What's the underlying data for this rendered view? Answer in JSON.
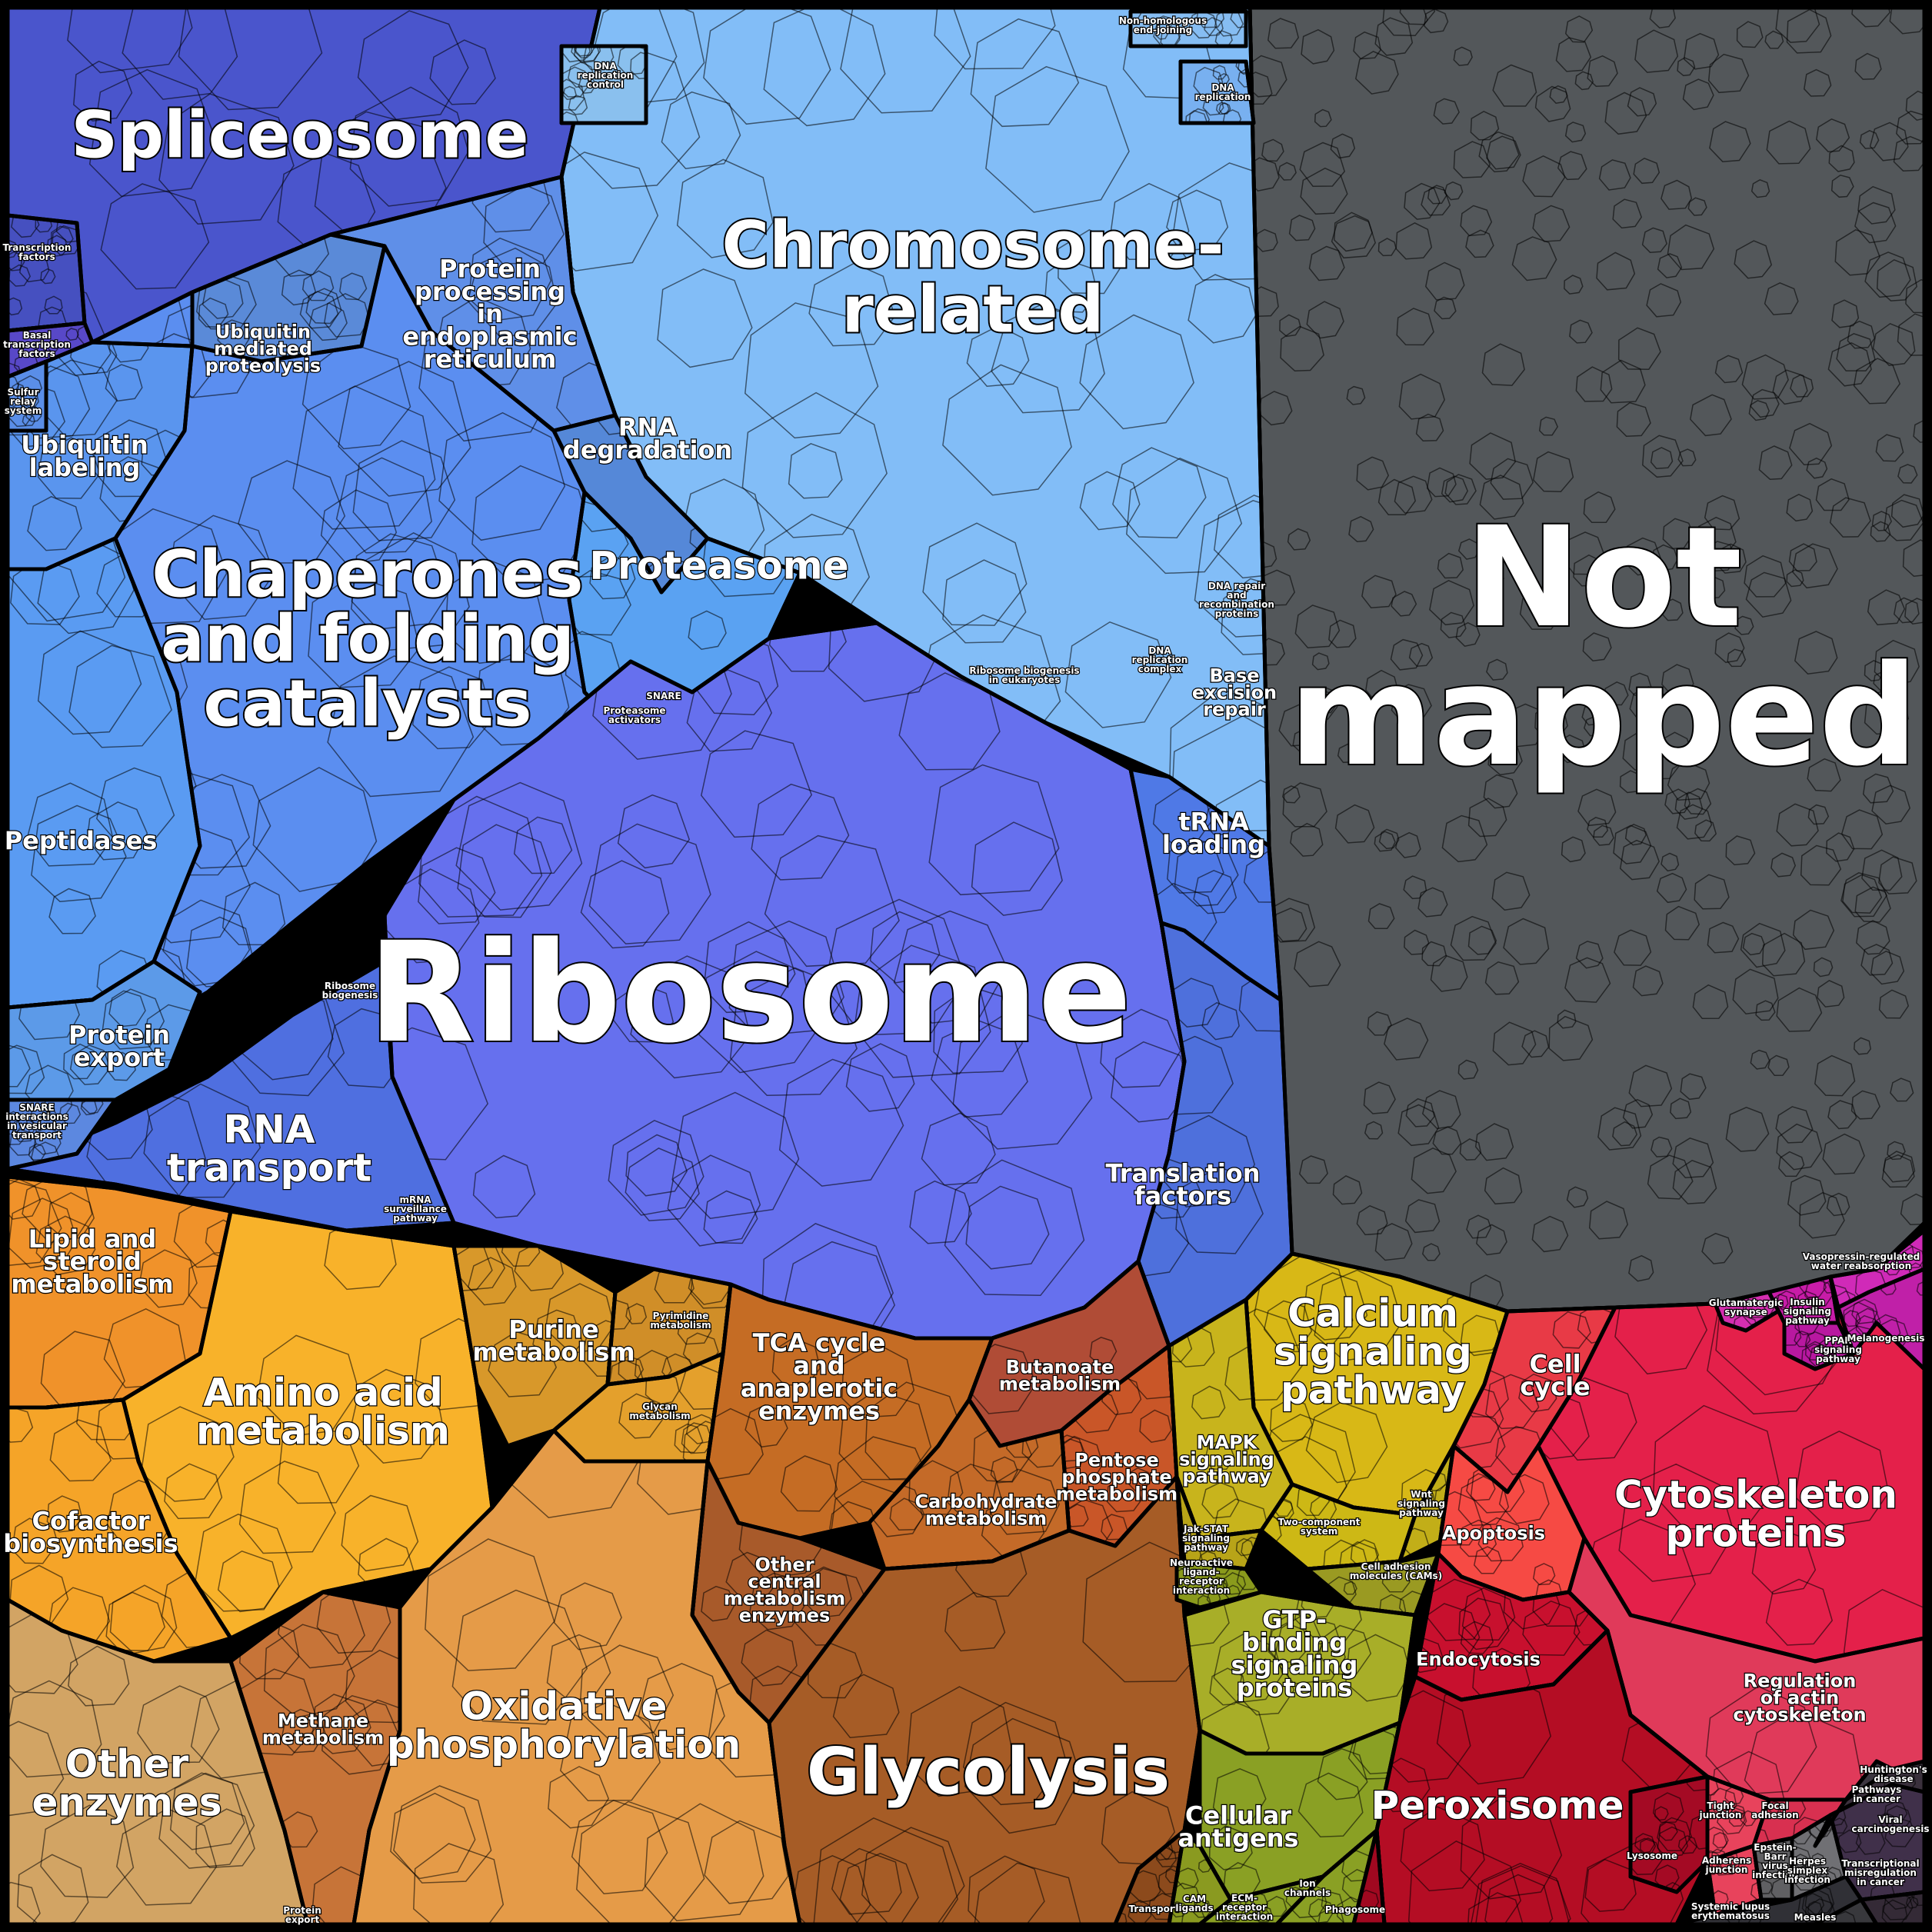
{
  "diagram": {
    "regions": [
      {
        "key": "spliceosome",
        "lines": [
          "Spliceosome"
        ],
        "color": "#4a55cc",
        "tier": "xl"
      },
      {
        "key": "chromosome",
        "lines": [
          "Chromosome-",
          "related"
        ],
        "color": "#82bdf7",
        "tier": "xl"
      },
      {
        "key": "not_mapped",
        "lines": [
          "Not",
          "mapped"
        ],
        "color": "#53575a",
        "tier": "xxl"
      },
      {
        "key": "chaperones",
        "lines": [
          "Chaperones",
          "and folding",
          "catalysts"
        ],
        "color": "#5b8ef0",
        "tier": "xl"
      },
      {
        "key": "ribosome",
        "lines": [
          "Ribosome"
        ],
        "color": "#6670ee",
        "tier": "xxl"
      },
      {
        "key": "protein_processing",
        "lines": [
          "Protein",
          "processing",
          "in",
          "endoplasmic",
          "reticulum"
        ],
        "color": "#5f8fe8",
        "tier": "m"
      },
      {
        "key": "ubiquitin_proteolysis",
        "lines": [
          "Ubiquitin",
          "mediated",
          "proteolysis"
        ],
        "color": "#5a8ad8",
        "tier": "s"
      },
      {
        "key": "ubiquitin_labeling",
        "lines": [
          "Ubiquitin",
          "labeling"
        ],
        "color": "#5a95ee",
        "tier": "m"
      },
      {
        "key": "rna_degradation",
        "lines": [
          "RNA",
          "degradation"
        ],
        "color": "#5588d8",
        "tier": "m"
      },
      {
        "key": "proteasome",
        "lines": [
          "Proteasome"
        ],
        "color": "#5aa2f2",
        "tier": "l"
      },
      {
        "key": "peptidases",
        "lines": [
          "Peptidases"
        ],
        "color": "#5a9bf2",
        "tier": "m"
      },
      {
        "key": "protein_export",
        "lines": [
          "Protein",
          "export"
        ],
        "color": "#5c9ae8",
        "tier": "m"
      },
      {
        "key": "rna_transport",
        "lines": [
          "RNA",
          "transport"
        ],
        "color": "#4f6fe0",
        "tier": "l"
      },
      {
        "key": "trna_loading",
        "lines": [
          "tRNA",
          "loading"
        ],
        "color": "#4f79e6",
        "tier": "m"
      },
      {
        "key": "translation_factors",
        "lines": [
          "Translation",
          "factors"
        ],
        "color": "#4e70dc",
        "tier": "m"
      },
      {
        "key": "ribosome_biogenesis",
        "lines": [
          "Ribosome",
          "biogenesis"
        ],
        "color": "#4d70d8",
        "tier": "xs"
      },
      {
        "key": "mrna_surveillance",
        "lines": [
          "mRNA",
          "surveillance",
          "pathway"
        ],
        "color": "#3f5fcc",
        "tier": "xs"
      },
      {
        "key": "snare",
        "lines": [
          "SNARE",
          "interactions",
          "in vesicular",
          "transport"
        ],
        "color": "#5c88e0",
        "tier": "xs"
      },
      {
        "key": "transcription_factors",
        "lines": [
          "Transcription",
          "factors"
        ],
        "color": "#4650c0",
        "tier": "xs"
      },
      {
        "key": "basal_tf",
        "lines": [
          "Basal",
          "transcription",
          "factors"
        ],
        "color": "#5848c8",
        "tier": "xs"
      },
      {
        "key": "sulfur_relay",
        "lines": [
          "Sulfur",
          "relay",
          "system"
        ],
        "color": "#5a8ee8",
        "tier": "xs"
      },
      {
        "key": "nhej",
        "lines": [
          "Non-homologous",
          "end-joining"
        ],
        "color": "#86bdf2",
        "tier": "xs"
      },
      {
        "key": "dna_replication",
        "lines": [
          "DNA",
          "replication"
        ],
        "color": "#78b0f0",
        "tier": "xs"
      },
      {
        "key": "dna_replication_control",
        "lines": [
          "DNA",
          "replication",
          "control"
        ],
        "color": "#8ac0ee",
        "tier": "xs"
      },
      {
        "key": "dna_repair",
        "lines": [
          "DNA repair",
          "and",
          "recombination",
          "proteins"
        ],
        "color": "#86bdf4",
        "tier": "xs"
      },
      {
        "key": "dna_replication_complex",
        "lines": [
          "DNA",
          "replication",
          "complex"
        ],
        "color": "#86bdf4",
        "tier": "xs"
      },
      {
        "key": "base_excision",
        "lines": [
          "Base",
          "excision",
          "repair"
        ],
        "color": "#8ab8e6",
        "tier": "s"
      },
      {
        "key": "ribosome_biogenesis_euk",
        "lines": [
          "Ribosome biogenesis",
          "in eukaryotes"
        ],
        "color": "#4c6ee0",
        "tier": "xs"
      },
      {
        "key": "proteasome_small",
        "lines": [
          "Proteasome",
          "activators"
        ],
        "color": "#5aa0ee",
        "tier": "xs"
      },
      {
        "key": "snare_small",
        "lines": [
          "SNARE"
        ],
        "color": "#5aa0ee",
        "tier": "xs"
      },
      {
        "key": "lipid",
        "lines": [
          "Lipid and",
          "steroid",
          "metabolism"
        ],
        "color": "#f0922a",
        "tier": "m"
      },
      {
        "key": "amino_acid",
        "lines": [
          "Amino acid",
          "metabolism"
        ],
        "color": "#f8b22a",
        "tier": "l"
      },
      {
        "key": "cofactor",
        "lines": [
          "Cofactor",
          "biosynthesis"
        ],
        "color": "#f5a428",
        "tier": "m"
      },
      {
        "key": "other_enzymes",
        "lines": [
          "Other",
          "enzymes"
        ],
        "color": "#d2a464",
        "tier": "l"
      },
      {
        "key": "purine",
        "lines": [
          "Purine",
          "metabolism"
        ],
        "color": "#d8982a",
        "tier": "m"
      },
      {
        "key": "pyrimidine",
        "lines": [
          "Pyrimidine",
          "metabolism"
        ],
        "color": "#d08e28",
        "tier": "xs"
      },
      {
        "key": "glycan",
        "lines": [
          "Glycan",
          "metabolism"
        ],
        "color": "#e4a02c",
        "tier": "xs"
      },
      {
        "key": "tca",
        "lines": [
          "TCA cycle",
          "and",
          "anaplerotic",
          "enzymes"
        ],
        "color": "#c56c24",
        "tier": "m"
      },
      {
        "key": "butanoate",
        "lines": [
          "Butanoate",
          "metabolism"
        ],
        "color": "#b04c36",
        "tier": "s"
      },
      {
        "key": "pentose",
        "lines": [
          "Pentose",
          "phosphate",
          "metabolism"
        ],
        "color": "#c95628",
        "tier": "s"
      },
      {
        "key": "carbohydrate",
        "lines": [
          "Carbohydrate",
          "metabolism"
        ],
        "color": "#c46a28",
        "tier": "s"
      },
      {
        "key": "other_central",
        "lines": [
          "Other",
          "central",
          "metabolism",
          "enzymes"
        ],
        "color": "#a85a2a",
        "tier": "s"
      },
      {
        "key": "methane",
        "lines": [
          "Methane",
          "metabolism"
        ],
        "color": "#c77438",
        "tier": "s"
      },
      {
        "key": "oxphos",
        "lines": [
          "Oxidative",
          "phosphorylation"
        ],
        "color": "#e59b48",
        "tier": "l"
      },
      {
        "key": "glycolysis",
        "lines": [
          "Glycolysis"
        ],
        "color": "#a65c26",
        "tier": "xl"
      },
      {
        "key": "transport",
        "lines": [
          "Transport"
        ],
        "color": "#8c4a1c",
        "tier": "xs"
      },
      {
        "key": "protein_export_small",
        "lines": [
          "Protein",
          "export"
        ],
        "color": "#c89458",
        "tier": "xs"
      },
      {
        "key": "calcium",
        "lines": [
          "Calcium",
          "signaling",
          "pathway"
        ],
        "color": "#d8b816",
        "tier": "l"
      },
      {
        "key": "mapk",
        "lines": [
          "MAPK",
          "signaling",
          "pathway"
        ],
        "color": "#c8b41c",
        "tier": "s"
      },
      {
        "key": "two_component",
        "lines": [
          "Two-component",
          "system"
        ],
        "color": "#cdb815",
        "tier": "xs"
      },
      {
        "key": "wnt",
        "lines": [
          "Wnt",
          "signaling",
          "pathway"
        ],
        "color": "#c2ae18",
        "tier": "xs"
      },
      {
        "key": "jak",
        "lines": [
          "Jak-STAT",
          "signaling",
          "pathway"
        ],
        "color": "#b8a418",
        "tier": "xs"
      },
      {
        "key": "neuroactive",
        "lines": [
          "Neuroactive",
          "ligand-",
          "receptor",
          "interaction"
        ],
        "color": "#8a9a1c",
        "tier": "xs"
      },
      {
        "key": "cam",
        "lines": [
          "Cell adhesion",
          "molecules (CAMs)"
        ],
        "color": "#9a9a22",
        "tier": "xs"
      },
      {
        "key": "gtp",
        "lines": [
          "GTP-",
          "binding",
          "signaling",
          "proteins"
        ],
        "color": "#a8ae28",
        "tier": "m"
      },
      {
        "key": "cellular_antigens",
        "lines": [
          "Cellular",
          "antigens"
        ],
        "color": "#8aa024",
        "tier": "m"
      },
      {
        "key": "cam_ligands",
        "lines": [
          "CAM",
          "ligands"
        ],
        "color": "#8a9a20",
        "tier": "xs"
      },
      {
        "key": "ecm",
        "lines": [
          "ECM-",
          "receptor",
          "interaction"
        ],
        "color": "#8aa024",
        "tier": "xs"
      },
      {
        "key": "ion_channels",
        "lines": [
          "Ion",
          "channels"
        ],
        "color": "#8aa024",
        "tier": "xs"
      },
      {
        "key": "cell_cycle",
        "lines": [
          "Cell",
          "cycle"
        ],
        "color": "#e83a46",
        "tier": "m"
      },
      {
        "key": "apoptosis",
        "lines": [
          "Apoptosis"
        ],
        "color": "#f64a44",
        "tier": "s"
      },
      {
        "key": "cytoskeleton",
        "lines": [
          "Cytoskeleton",
          "proteins"
        ],
        "color": "#e4204a",
        "tier": "l"
      },
      {
        "key": "endocytosis",
        "lines": [
          "Endocytosis"
        ],
        "color": "#c8102e",
        "tier": "s"
      },
      {
        "key": "regulation_actin",
        "lines": [
          "Regulation",
          "of actin",
          "cytoskeleton"
        ],
        "color": "#e03a5a",
        "tier": "s"
      },
      {
        "key": "peroxisome",
        "lines": [
          "Peroxisome"
        ],
        "color": "#b40d24",
        "tier": "l"
      },
      {
        "key": "lysosome",
        "lines": [
          "Lysosome"
        ],
        "color": "#a40a24",
        "tier": "xs"
      },
      {
        "key": "phagosome",
        "lines": [
          "Phagosome"
        ],
        "color": "#a00820",
        "tier": "xs"
      },
      {
        "key": "tight_junction",
        "lines": [
          "Tight",
          "junction"
        ],
        "color": "#e8435c",
        "tier": "xs"
      },
      {
        "key": "focal_adhesion",
        "lines": [
          "Focal",
          "adhesion"
        ],
        "color": "#d83050",
        "tier": "xs"
      },
      {
        "key": "adherens_junction",
        "lines": [
          "Adherens",
          "junction"
        ],
        "color": "#e8435c",
        "tier": "xs"
      },
      {
        "key": "epstein",
        "lines": [
          "Epstein-",
          "Barr",
          "virus",
          "infection"
        ],
        "color": "#606063",
        "tier": "xs"
      },
      {
        "key": "herpes",
        "lines": [
          "Herpes",
          "simplex",
          "infection"
        ],
        "color": "#707074",
        "tier": "xs"
      },
      {
        "key": "transcriptional_mis",
        "lines": [
          "Transcriptional",
          "misregulation",
          "in cancer"
        ],
        "color": "#40304a",
        "tier": "xs"
      },
      {
        "key": "sle",
        "lines": [
          "Systemic lupus",
          "erythematosus"
        ],
        "color": "#303036",
        "tier": "xs"
      },
      {
        "key": "measles",
        "lines": [
          "Measles"
        ],
        "color": "#38383c",
        "tier": "xs"
      },
      {
        "key": "pathways_cancer",
        "lines": [
          "Pathways",
          "in cancer"
        ],
        "color": "#3a303c",
        "tier": "xs"
      },
      {
        "key": "viral_carcinogenesis",
        "lines": [
          "Viral",
          "carcinogenesis"
        ],
        "color": "#342a36",
        "tier": "xs"
      },
      {
        "key": "huntington",
        "lines": [
          "Huntington's",
          "disease"
        ],
        "color": "#3c3640",
        "tier": "xs"
      },
      {
        "key": "glutamatergic",
        "lines": [
          "Glutamatergic",
          "synapse"
        ],
        "color": "#d42eb0",
        "tier": "xs"
      },
      {
        "key": "insulin",
        "lines": [
          "Insulin",
          "signaling",
          "pathway"
        ],
        "color": "#c81ca8",
        "tier": "xs"
      },
      {
        "key": "ppar",
        "lines": [
          "PPAR",
          "signaling",
          "pathway"
        ],
        "color": "#b818a0",
        "tier": "xs"
      },
      {
        "key": "vasopressin",
        "lines": [
          "Vasopressin-regulated",
          "water reabsorption"
        ],
        "color": "#d02ab8",
        "tier": "xs"
      },
      {
        "key": "melanogenesis",
        "lines": [
          "Melanogenesis"
        ],
        "color": "#c020a8",
        "tier": "xs"
      }
    ]
  }
}
